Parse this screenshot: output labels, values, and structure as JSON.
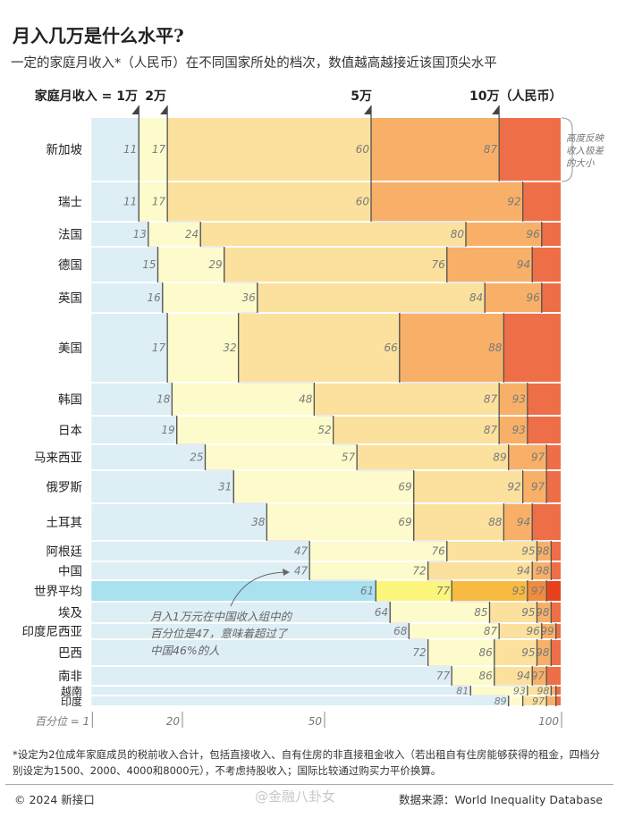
{
  "header": {
    "title": "月入几万是什么水平?",
    "subtitle": "一定的家庭月收入*（人民币）在不同国家所处的档次，数值越高越接近该国顶尖水平"
  },
  "chart_data": {
    "type": "bar",
    "orientation": "horizontal-stacked-step",
    "income_levels": [
      "家庭月收入 = 1万",
      "2万",
      "5万",
      "10万（人民币）"
    ],
    "x_axis": {
      "label": "百分位 = 1",
      "ticks": [
        "1",
        "20",
        "50",
        "100"
      ],
      "range": [
        1,
        100
      ]
    },
    "annotation_height": "高度反映收入极差的大小",
    "annotation_china": "月入1万元在中国收入组中的百分位是47，意味着超过了中国46%的人",
    "annotation_china_lines": [
      "月入1万元在中国收入组中的",
      "百分位是47，意味着超过了",
      "中国46%的人"
    ],
    "colors": [
      "#ddeef5",
      "#fdfbcb",
      "#fbe19d",
      "#f8b068",
      "#ee6e47"
    ],
    "highlight_colors": [
      "#a9e1f1",
      "#fbf57c",
      "#f7bb42",
      "#f08c3c",
      "#e7411b"
    ],
    "rows": [
      {
        "country": "新加坡",
        "values": [
          11,
          17,
          60,
          87
        ],
        "labels": [
          "11",
          "17",
          "60",
          "87"
        ]
      },
      {
        "country": "瑞士",
        "values": [
          11,
          17,
          60,
          92
        ],
        "labels": [
          "11",
          "17",
          "60",
          "92"
        ]
      },
      {
        "country": "法国",
        "values": [
          13,
          24,
          80,
          96
        ],
        "labels": [
          "13",
          "24",
          "80",
          "96"
        ]
      },
      {
        "country": "德国",
        "values": [
          15,
          29,
          76,
          94
        ],
        "labels": [
          "15",
          "29",
          "76",
          "94"
        ]
      },
      {
        "country": "英国",
        "values": [
          16,
          36,
          84,
          96
        ],
        "labels": [
          "16",
          "36",
          "84",
          "96"
        ]
      },
      {
        "country": "美国",
        "values": [
          17,
          32,
          66,
          88
        ],
        "labels": [
          "17",
          "32",
          "66",
          "88"
        ]
      },
      {
        "country": "韩国",
        "values": [
          18,
          48,
          87,
          93
        ],
        "labels": [
          "18",
          "48",
          "87",
          "93"
        ]
      },
      {
        "country": "日本",
        "values": [
          19,
          52,
          87,
          93
        ],
        "labels": [
          "19",
          "52",
          "87",
          "93"
        ]
      },
      {
        "country": "马来西亚",
        "values": [
          25,
          57,
          89,
          97
        ],
        "labels": [
          "25",
          "57",
          "89",
          "97"
        ]
      },
      {
        "country": "俄罗斯",
        "values": [
          31,
          69,
          92,
          97
        ],
        "labels": [
          "31",
          "69",
          "92",
          "97"
        ]
      },
      {
        "country": "土耳其",
        "values": [
          38,
          69,
          88,
          94
        ],
        "labels": [
          "38",
          "69",
          "88",
          "94"
        ]
      },
      {
        "country": "阿根廷",
        "values": [
          47,
          76,
          95,
          98
        ],
        "labels": [
          "47",
          "76",
          "95",
          "98"
        ]
      },
      {
        "country": "中国",
        "values": [
          47,
          72,
          94,
          98
        ],
        "labels": [
          "47",
          "72",
          "94",
          "98"
        ]
      },
      {
        "country": "世界平均",
        "values": [
          61,
          77,
          93,
          97
        ],
        "labels": [
          "61",
          "77",
          "93",
          "97"
        ],
        "highlight": true
      },
      {
        "country": "埃及",
        "values": [
          64,
          85,
          95,
          98
        ],
        "labels": [
          "64",
          "85",
          "95",
          "98"
        ]
      },
      {
        "country": "印度尼西亚",
        "values": [
          68,
          87,
          96,
          99
        ],
        "labels": [
          "68",
          "87",
          "96",
          "99"
        ]
      },
      {
        "country": "巴西",
        "values": [
          72,
          86,
          95,
          98
        ],
        "labels": [
          "72",
          "86",
          "95",
          "98"
        ]
      },
      {
        "country": "南非",
        "values": [
          77,
          86,
          94,
          97
        ],
        "labels": [
          "77",
          "86",
          "94",
          "97"
        ]
      },
      {
        "country": "越南",
        "values": [
          81,
          93,
          98,
          99
        ],
        "labels": [
          "81",
          "93",
          "98",
          ""
        ]
      },
      {
        "country": "印度",
        "values": [
          89,
          92,
          97,
          99
        ],
        "labels": [
          "89",
          "",
          "97",
          ""
        ]
      }
    ]
  },
  "footnote": "*设定为2位成年家庭成员的税前收入合计，包括直接收入、自有住房的非直接租金收入（若出租自有住房能够获得的租金，四档分别设定为1500、2000、4000和8000元），不考虑持股收入；国际比较通过购买力平价换算。",
  "footer": {
    "copyright": "© 2024 新接口",
    "watermark": "@金融八卦女",
    "source": "数据来源：World Inequality Database"
  }
}
